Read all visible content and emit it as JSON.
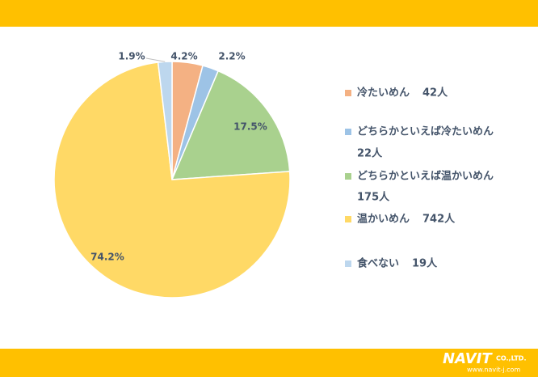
{
  "chart_data": {
    "type": "pie",
    "categories": [
      "冷たいめん",
      "どちらかといえば冷たいめん",
      "どちらかといえば温かいめん",
      "温かいめん",
      "食べない"
    ],
    "counts": [
      42,
      22,
      175,
      742,
      19
    ],
    "count_labels": [
      "42人",
      "22人",
      "175人",
      "742人",
      "19人"
    ],
    "values": [
      4.2,
      2.2,
      17.5,
      74.2,
      1.9
    ],
    "value_labels": [
      "4.2%",
      "2.2%",
      "17.5%",
      "74.2%",
      "1.9%"
    ],
    "colors": [
      "#f4b183",
      "#9dc3e6",
      "#a9d18e",
      "#ffd966",
      "#bdd7ee"
    ]
  },
  "footer": {
    "logo": "NAVIT",
    "company": "CO.,LTD.",
    "url": "www.navit-j.com"
  }
}
